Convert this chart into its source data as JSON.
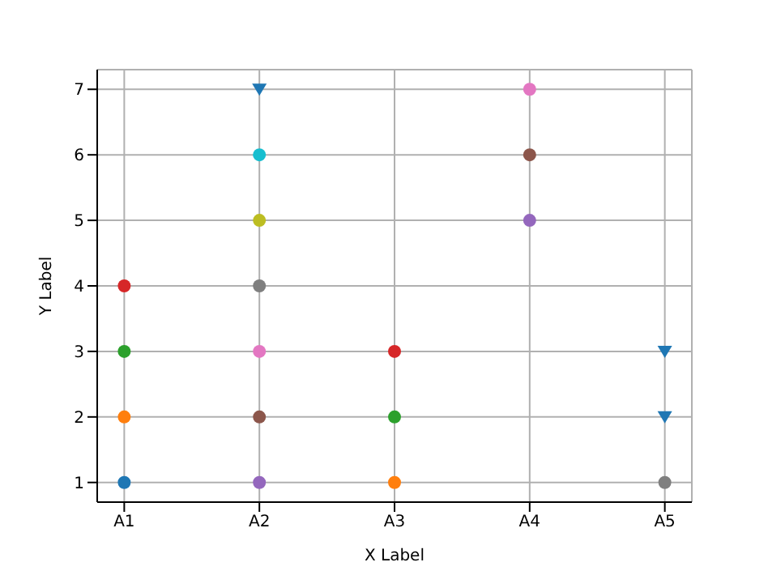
{
  "chart_data": {
    "type": "scatter",
    "xlabel": "X Label",
    "ylabel": "Y Label",
    "categories": [
      "A1",
      "A2",
      "A3",
      "A4",
      "A5"
    ],
    "ylim": [
      0.7,
      7.3
    ],
    "yticks": [
      1,
      2,
      3,
      4,
      5,
      6,
      7
    ],
    "grid": true,
    "legend": false,
    "series": [
      {
        "marker": "triangle",
        "color": "#1f77b4",
        "x": [
          "A2",
          "A5",
          "A5"
        ],
        "values": [
          7,
          2,
          3
        ]
      },
      {
        "marker": "circle",
        "x": [
          "A1",
          "A1",
          "A1",
          "A1",
          "A2",
          "A2",
          "A2",
          "A2",
          "A2",
          "A2",
          "A3",
          "A3",
          "A3",
          "A4",
          "A4",
          "A4",
          "A5"
        ],
        "values": [
          1,
          2,
          3,
          4,
          1,
          2,
          3,
          4,
          5,
          6,
          1,
          2,
          3,
          5,
          6,
          7,
          1
        ],
        "colors": [
          "#1f77b4",
          "#ff7f0e",
          "#2ca02c",
          "#d62728",
          "#9467bd",
          "#8c564b",
          "#e377c2",
          "#7f7f7f",
          "#bcbd22",
          "#17becf",
          "#ff7f0e",
          "#2ca02c",
          "#d62728",
          "#9467bd",
          "#8c564b",
          "#e377c2",
          "#7f7f7f"
        ]
      }
    ]
  }
}
